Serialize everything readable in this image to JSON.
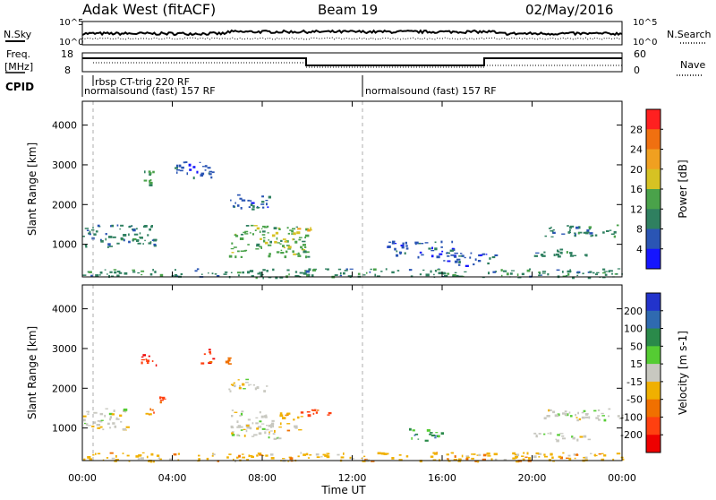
{
  "header": {
    "radar": "Adak West (fitACF)",
    "beam": "Beam 19",
    "date": "02/May/2016"
  },
  "side_labels": {
    "nsky": "N.Sky",
    "freq_line1": "Freq.",
    "freq_line2": "[MHz]",
    "cpid": "CPID",
    "nsearch": "N.Search",
    "nave": "Nave"
  },
  "noise_panel": {
    "left_ticks": [
      "10^5",
      "10^0"
    ],
    "right_ticks": [
      "10^5",
      "10^0"
    ]
  },
  "freq_panel": {
    "left_ticks": [
      "18",
      "8"
    ],
    "right_ticks": [
      "60",
      "0"
    ]
  },
  "cpid_labels": [
    {
      "text": "rbsp CT-trig 220 RF",
      "start_hour": 0.5
    },
    {
      "text": "normalsound (fast) 157 RF",
      "start_hour": 0.0
    },
    {
      "text": "normalsound (fast) 157 RF",
      "start_hour": 12.5
    }
  ],
  "x_axis": {
    "label": "Time UT",
    "ticks": [
      "00:00",
      "04:00",
      "08:00",
      "12:00",
      "16:00",
      "20:00",
      "00:00"
    ],
    "range_hours": [
      0,
      24
    ]
  },
  "power_panel": {
    "ylabel": "Slant Range [km]",
    "yticks": [
      "4000",
      "3000",
      "2000",
      "1000"
    ],
    "colorbar_label": "Power [dB]",
    "colorbar_ticks": [
      "28",
      "24",
      "20",
      "16",
      "12",
      "8",
      "4"
    ],
    "colors": [
      "#1515ff",
      "#2a55b4",
      "#2f8060",
      "#4aa24a",
      "#d6c223",
      "#f0a020",
      "#f07010",
      "#ff2020"
    ]
  },
  "velocity_panel": {
    "ylabel": "Slant Range [km]",
    "yticks": [
      "4000",
      "3000",
      "2000",
      "1000"
    ],
    "colorbar_label": "Velocity [m s-1]",
    "colorbar_ticks": [
      "200",
      "100",
      "50",
      "15",
      "-15",
      "-50",
      "-100",
      "-200"
    ],
    "colors": [
      "#2233cc",
      "#2f6ab0",
      "#2a8a4a",
      "#55cc33",
      "#c8c8c0",
      "#f0b000",
      "#f07000",
      "#ff4010",
      "#ee0000"
    ]
  },
  "chart_data": [
    {
      "type": "heatmap",
      "title": "Power",
      "x_unit": "hours UT",
      "y_unit": "km",
      "xlim": [
        0,
        24
      ],
      "ylim": [
        180,
        4600
      ],
      "regions": [
        {
          "x": [
            0.0,
            3.3
          ],
          "y": [
            950,
            1500
          ],
          "power": 8
        },
        {
          "x": [
            2.5,
            3.2
          ],
          "y": [
            2500,
            2900
          ],
          "power": 14
        },
        {
          "x": [
            4.0,
            5.8
          ],
          "y": [
            2700,
            3100
          ],
          "power": 6
        },
        {
          "x": [
            6.5,
            8.3
          ],
          "y": [
            1900,
            2300
          ],
          "power": 6
        },
        {
          "x": [
            6.5,
            10.0
          ],
          "y": [
            700,
            1500
          ],
          "power": 12
        },
        {
          "x": [
            9.5,
            10.2
          ],
          "y": [
            1350,
            1500
          ],
          "power": 18
        },
        {
          "x": [
            13.5,
            16.5
          ],
          "y": [
            700,
            1100
          ],
          "power": 6
        },
        {
          "x": [
            16.0,
            18.5
          ],
          "y": [
            450,
            800
          ],
          "power": 6
        },
        {
          "x": [
            20.0,
            22.5
          ],
          "y": [
            700,
            900
          ],
          "power": 8
        },
        {
          "x": [
            20.5,
            24.0
          ],
          "y": [
            1200,
            1500
          ],
          "power": 8
        },
        {
          "x": [
            0.0,
            24.0
          ],
          "y": [
            180,
            400
          ],
          "power": 10
        }
      ]
    },
    {
      "type": "heatmap",
      "title": "Velocity",
      "x_unit": "hours UT",
      "y_unit": "km",
      "xlim": [
        0,
        24
      ],
      "ylim": [
        180,
        4600
      ],
      "regions": [
        {
          "x": [
            0.0,
            2.0
          ],
          "y": [
            950,
            1500
          ],
          "velocity": 0
        },
        {
          "x": [
            2.6,
            3.3
          ],
          "y": [
            2500,
            2900
          ],
          "velocity": -200
        },
        {
          "x": [
            5.2,
            5.8
          ],
          "y": [
            2650,
            3000
          ],
          "velocity": -200
        },
        {
          "x": [
            6.3,
            6.5
          ],
          "y": [
            2600,
            2800
          ],
          "velocity": -100
        },
        {
          "x": [
            3.4,
            3.6
          ],
          "y": [
            1650,
            1800
          ],
          "velocity": -150
        },
        {
          "x": [
            2.8,
            3.2
          ],
          "y": [
            1350,
            1500
          ],
          "velocity": -100
        },
        {
          "x": [
            6.5,
            8.3
          ],
          "y": [
            1950,
            2250
          ],
          "velocity": 0
        },
        {
          "x": [
            6.5,
            8.7
          ],
          "y": [
            750,
            1500
          ],
          "velocity": 0
        },
        {
          "x": [
            8.7,
            9.7
          ],
          "y": [
            950,
            1400
          ],
          "velocity": -50
        },
        {
          "x": [
            9.5,
            11.0
          ],
          "y": [
            1300,
            1500
          ],
          "velocity": -200
        },
        {
          "x": [
            14.5,
            16.0
          ],
          "y": [
            700,
            1000
          ],
          "velocity": 50
        },
        {
          "x": [
            20.5,
            24.0
          ],
          "y": [
            1200,
            1500
          ],
          "velocity": 0
        },
        {
          "x": [
            20.0,
            22.5
          ],
          "y": [
            700,
            900
          ],
          "velocity": 0
        },
        {
          "x": [
            0.0,
            24.0
          ],
          "y": [
            180,
            400
          ],
          "velocity": -50
        }
      ]
    }
  ]
}
